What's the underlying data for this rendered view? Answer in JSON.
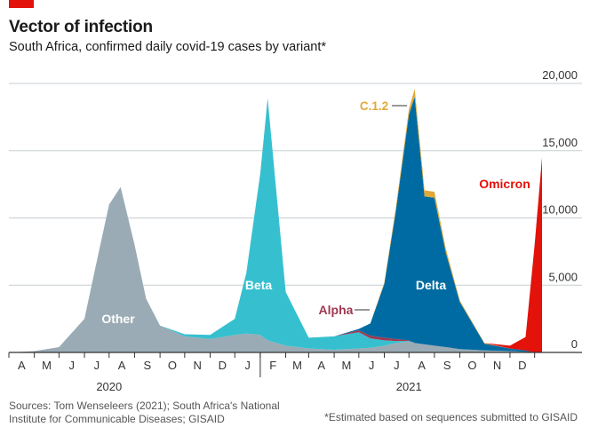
{
  "header": {
    "title": "Vector of infection",
    "subtitle": "South Africa, confirmed daily covid-19 cases by variant*"
  },
  "footer": {
    "sources": "Sources: Tom Wenseleers (2021); South Africa's National Institute for Communicable Diseases; GISAID",
    "note": "*Estimated based on sequences submitted to GISAID"
  },
  "colors": {
    "Other": "#9aabb5",
    "Beta": "#36c0cf",
    "Alpha": "#a03852",
    "Delta": "#006ba2",
    "C.1.2": "#e0a838",
    "Omicron": "#e3120b",
    "grid": "#c7cfd4",
    "axis": "#333333"
  },
  "chart_data": {
    "type": "area",
    "title": "Vector of infection",
    "subtitle": "South Africa, confirmed daily covid-19 cases by variant*",
    "ylim": [
      0,
      20000
    ],
    "yticks": [
      "20,000",
      "15,000",
      "10,000",
      "5,000",
      "0"
    ],
    "ytick_values": [
      20000,
      15000,
      10000,
      5000,
      0
    ],
    "xticks": [
      "A",
      "M",
      "J",
      "J",
      "A",
      "S",
      "O",
      "N",
      "D",
      "J",
      "F",
      "M",
      "A",
      "M",
      "J",
      "J",
      "A",
      "S",
      "O",
      "N",
      "D"
    ],
    "year_labels": [
      "2020",
      "2021"
    ],
    "grid": true,
    "stacked": true,
    "x": [
      "2020-03-01",
      "2020-04-01",
      "2020-05-01",
      "2020-06-01",
      "2020-06-15",
      "2020-07-01",
      "2020-07-15",
      "2020-08-01",
      "2020-08-15",
      "2020-09-01",
      "2020-10-01",
      "2020-11-01",
      "2020-12-01",
      "2020-12-15",
      "2021-01-01",
      "2021-01-10",
      "2021-02-01",
      "2021-03-01",
      "2021-04-01",
      "2021-05-01",
      "2021-05-15",
      "2021-06-01",
      "2021-06-15",
      "2021-07-01",
      "2021-07-08",
      "2021-07-20",
      "2021-08-01",
      "2021-08-15",
      "2021-09-01",
      "2021-10-01",
      "2021-11-01",
      "2021-11-20",
      "2021-12-01",
      "2021-12-10"
    ],
    "series": [
      {
        "name": "Other",
        "values": [
          0,
          100,
          400,
          2500,
          6500,
          11000,
          12300,
          8000,
          4000,
          2000,
          1200,
          1000,
          1300,
          1400,
          1300,
          900,
          500,
          300,
          200,
          300,
          350,
          500,
          700,
          800,
          700,
          600,
          500,
          400,
          250,
          150,
          100,
          50,
          0,
          0
        ]
      },
      {
        "name": "Beta",
        "values": [
          0,
          0,
          0,
          0,
          0,
          0,
          0,
          0,
          0,
          0,
          150,
          300,
          1200,
          4500,
          12000,
          18000,
          4000,
          800,
          1000,
          1200,
          700,
          400,
          150,
          50,
          0,
          0,
          0,
          0,
          0,
          0,
          0,
          0,
          0,
          0
        ]
      },
      {
        "name": "Alpha",
        "values": [
          0,
          0,
          0,
          0,
          0,
          0,
          0,
          0,
          0,
          0,
          0,
          0,
          0,
          0,
          0,
          0,
          0,
          0,
          0,
          150,
          200,
          200,
          150,
          50,
          0,
          0,
          0,
          0,
          0,
          0,
          0,
          0,
          0,
          0
        ]
      },
      {
        "name": "Delta",
        "values": [
          0,
          0,
          0,
          0,
          0,
          0,
          0,
          0,
          0,
          0,
          0,
          0,
          0,
          0,
          0,
          0,
          0,
          0,
          0,
          100,
          900,
          4000,
          9500,
          16800,
          18300,
          11000,
          11000,
          7000,
          3500,
          500,
          200,
          100,
          0,
          0
        ]
      },
      {
        "name": "C.1.2",
        "values": [
          0,
          0,
          0,
          0,
          0,
          0,
          0,
          0,
          0,
          0,
          0,
          0,
          0,
          0,
          0,
          0,
          0,
          0,
          0,
          0,
          0,
          100,
          250,
          400,
          600,
          450,
          450,
          300,
          100,
          50,
          0,
          0,
          0,
          0
        ]
      },
      {
        "name": "Omicron",
        "values": [
          0,
          0,
          0,
          0,
          0,
          0,
          0,
          0,
          0,
          0,
          0,
          0,
          0,
          0,
          0,
          0,
          0,
          0,
          0,
          0,
          0,
          0,
          0,
          0,
          0,
          0,
          0,
          0,
          0,
          0,
          200,
          1000,
          8000,
          14500
        ]
      }
    ],
    "annotations": [
      "Other",
      "Beta",
      "Alpha",
      "Delta",
      "C.1.2",
      "Omicron"
    ]
  }
}
